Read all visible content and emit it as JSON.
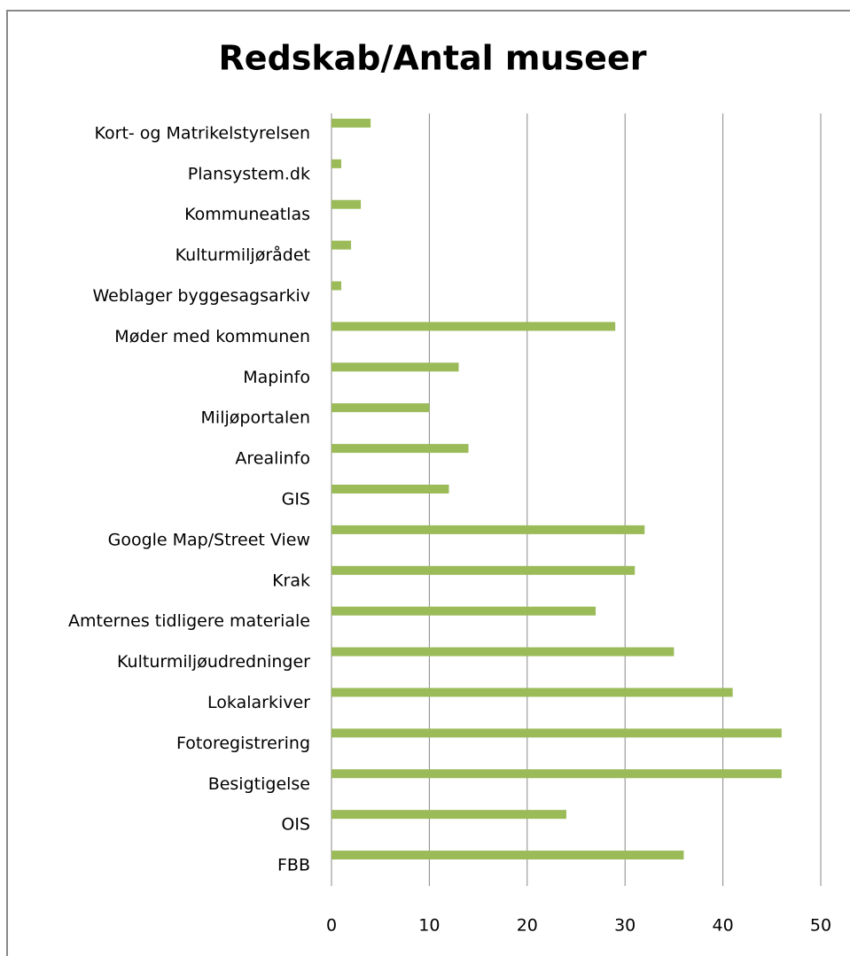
{
  "chart_data": {
    "type": "bar",
    "orientation": "horizontal",
    "title": "Redskab/Antal museer",
    "categories": [
      "Kort- og Matrikelstyrelsen",
      "Plansystem.dk",
      "Kommuneatlas",
      "Kulturmiljørådet",
      "Weblager byggesagsarkiv",
      "Møder med kommunen",
      "Mapinfo",
      "Miljøportalen",
      "Arealinfo",
      "GIS",
      "Google Map/Street View",
      "Krak",
      "Amternes tidligere materiale",
      "Kulturmiljøudredninger",
      "Lokalarkiver",
      "Fotoregistrering",
      "Besigtigelse",
      "OIS",
      "FBB"
    ],
    "values": [
      4,
      1,
      3,
      2,
      1,
      29,
      13,
      10,
      14,
      12,
      32,
      31,
      27,
      35,
      41,
      46,
      46,
      24,
      36
    ],
    "color": "#9bbb59",
    "xlim": [
      0,
      50
    ],
    "xticks": [
      0,
      10,
      20,
      30,
      40,
      50
    ],
    "grid": true
  }
}
